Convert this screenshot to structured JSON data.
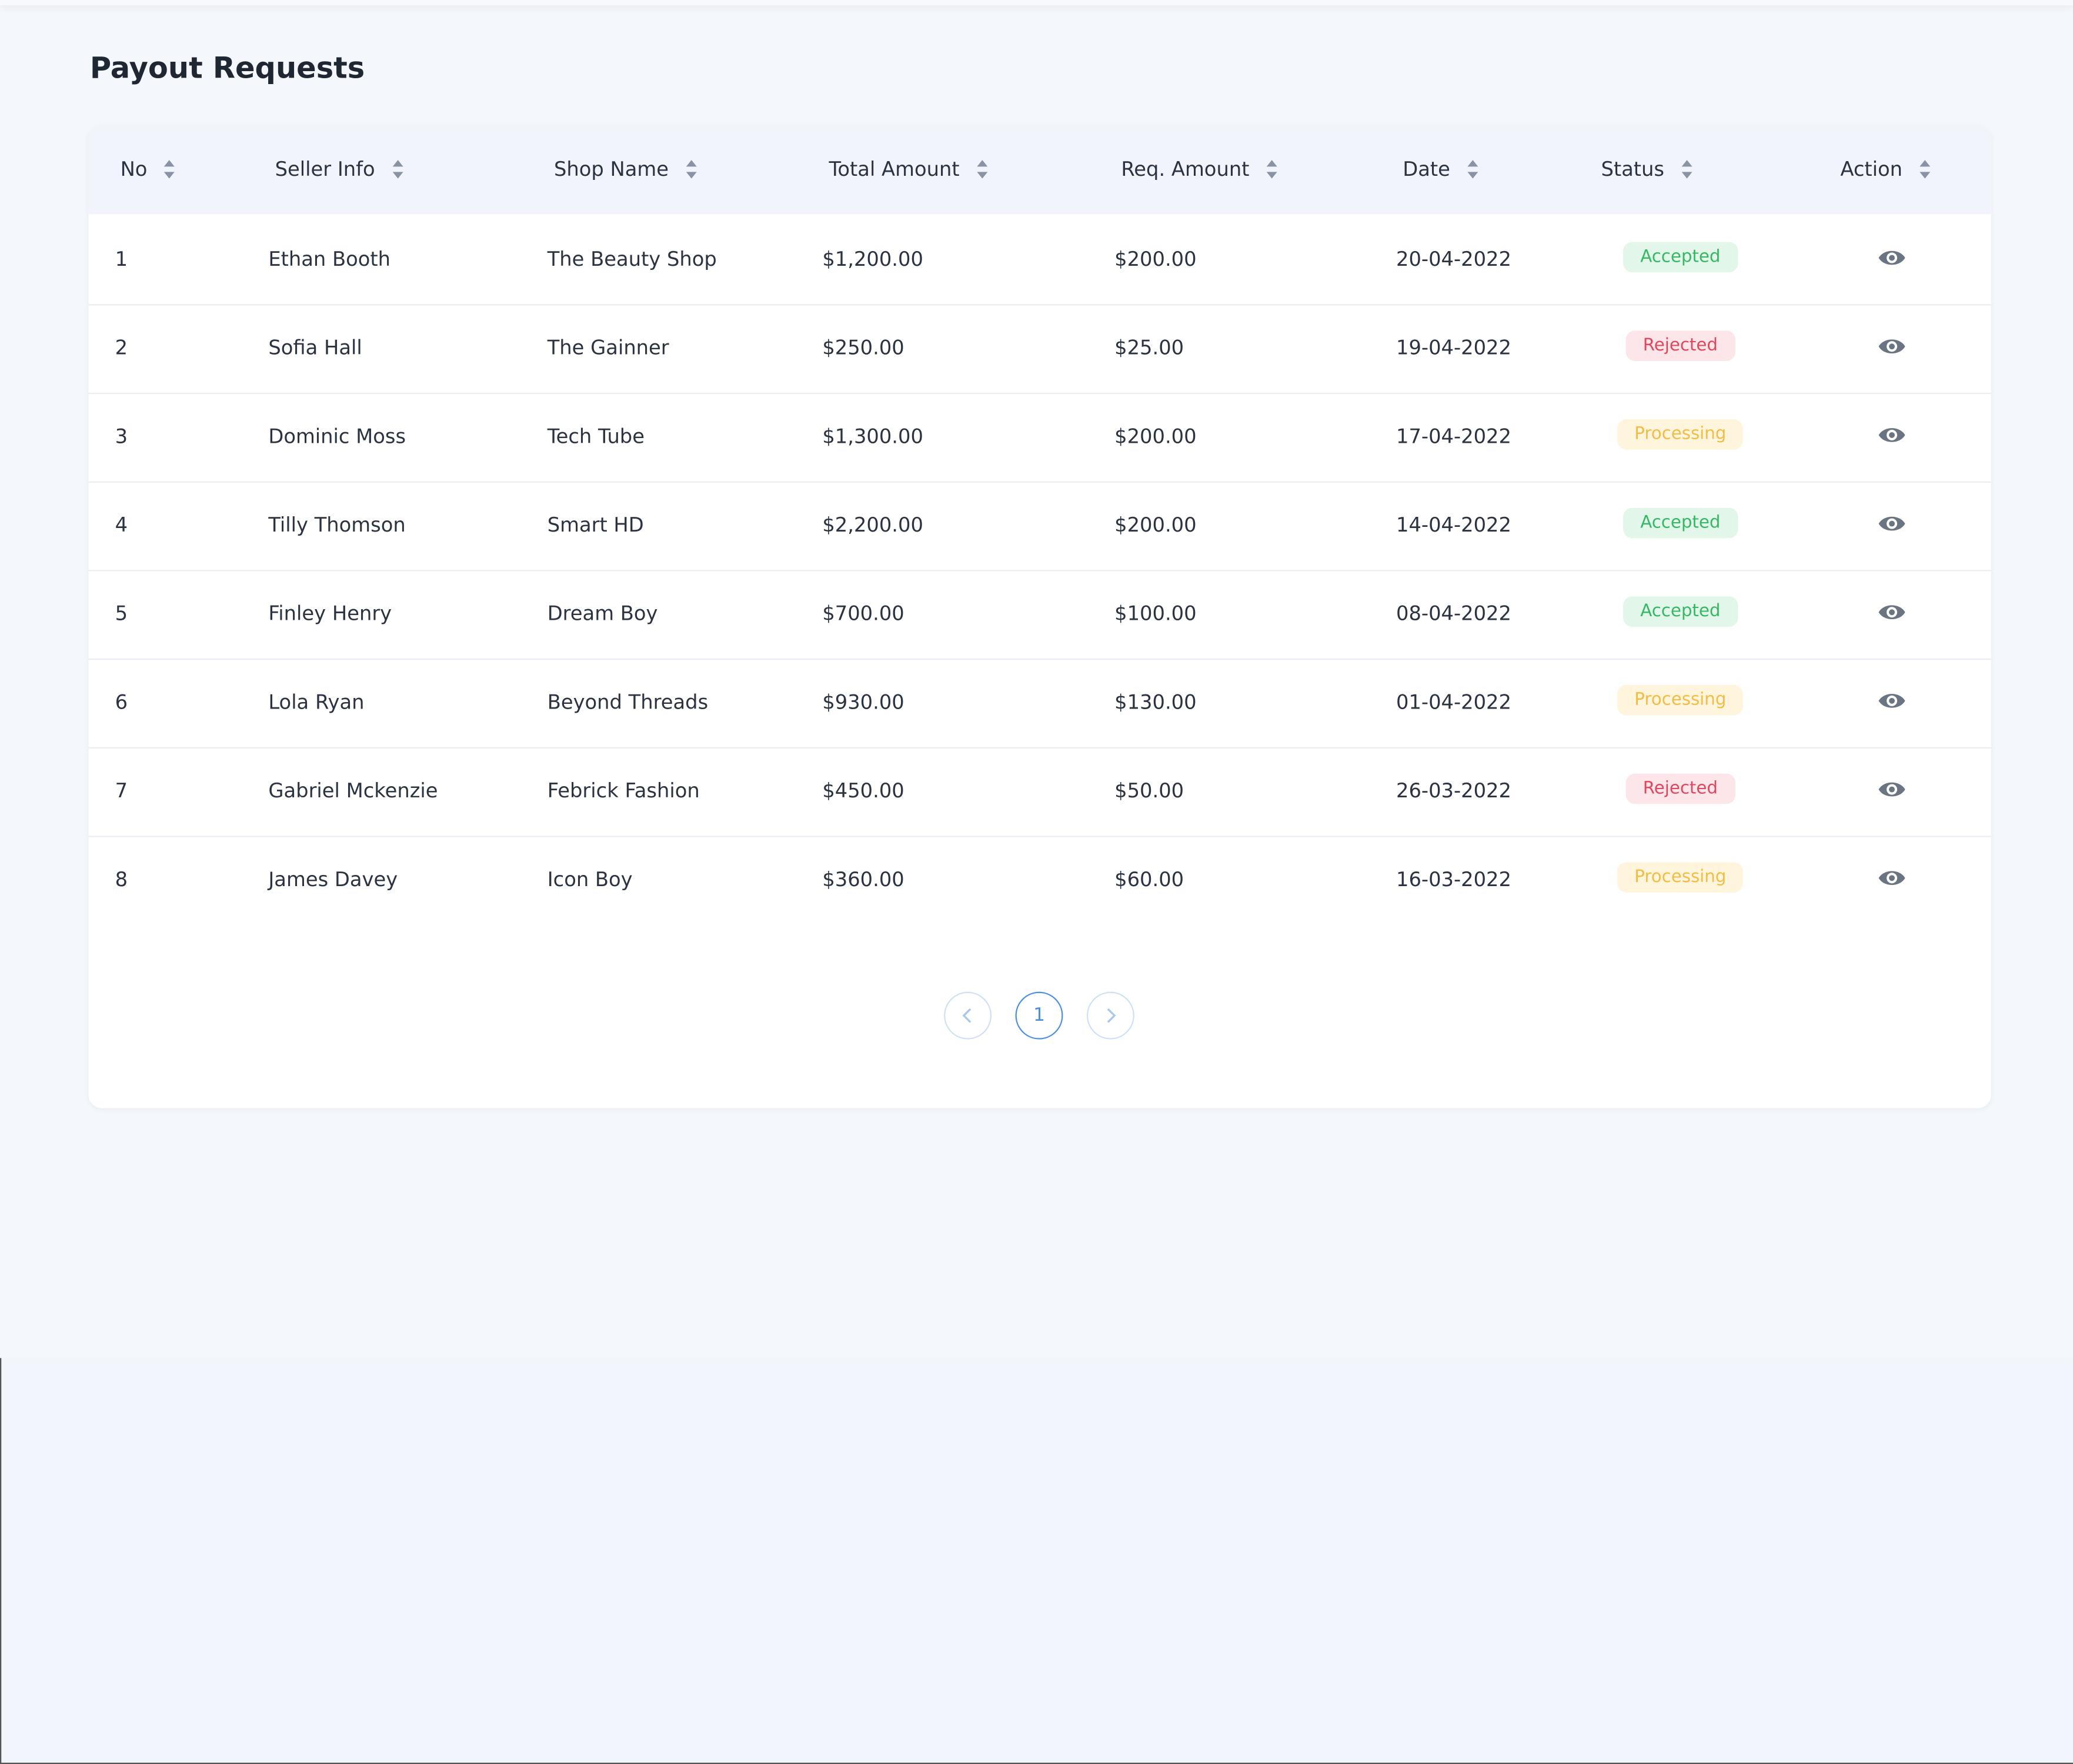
{
  "header": {
    "title": "Payout Requests"
  },
  "table": {
    "columns": [
      "No",
      "Seller Info",
      "Shop Name",
      "Total Amount",
      "Req. Amount",
      "Date",
      "Status",
      "Action"
    ],
    "rows": [
      {
        "no": "1",
        "seller": "Ethan Booth",
        "shop": "The Beauty Shop",
        "total": "$1,200.00",
        "requested": "$200.00",
        "date": "20-04-2022",
        "status": {
          "text": "Accepted",
          "color": "#35b864",
          "background": "#e2f7ea"
        }
      },
      {
        "no": "2",
        "seller": "Sofia Hall",
        "shop": "The Gainner",
        "total": "$250.00",
        "requested": "$25.00",
        "date": "19-04-2022",
        "status": {
          "text": "Rejected",
          "color": "#e0475e",
          "background": "#fde6ea"
        }
      },
      {
        "no": "3",
        "seller": "Dominic Moss",
        "shop": "Tech Tube",
        "total": "$1,300.00",
        "requested": "$200.00",
        "date": "17-04-2022",
        "status": {
          "text": "Processing",
          "color": "#f3bd45",
          "background": "#fff5dc"
        }
      },
      {
        "no": "4",
        "seller": "Tilly Thomson",
        "shop": "Smart HD",
        "total": "$2,200.00",
        "requested": "$200.00",
        "date": "14-04-2022",
        "status": {
          "text": "Accepted",
          "color": "#35b864",
          "background": "#e2f7ea"
        }
      },
      {
        "no": "5",
        "seller": "Finley Henry",
        "shop": "Dream Boy",
        "total": "$700.00",
        "requested": "$100.00",
        "date": "08-04-2022",
        "status": {
          "text": "Accepted",
          "color": "#35b864",
          "background": "#e2f7ea"
        }
      },
      {
        "no": "6",
        "seller": "Lola Ryan",
        "shop": "Beyond Threads",
        "total": "$930.00",
        "requested": "$130.00",
        "date": "01-04-2022",
        "status": {
          "text": "Processing",
          "color": "#f3bd45",
          "background": "#fff5dc"
        }
      },
      {
        "no": "7",
        "seller": "Gabriel Mckenzie",
        "shop": "Febrick Fashion",
        "total": "$450.00",
        "requested": "$50.00",
        "date": "26-03-2022",
        "status": {
          "text": "Rejected",
          "color": "#e0475e",
          "background": "#fde6ea"
        }
      },
      {
        "no": "8",
        "seller": "James Davey",
        "shop": "Icon Boy",
        "total": "$360.00",
        "requested": "$60.00",
        "date": "16-03-2022",
        "status": {
          "text": "Processing",
          "color": "#f3bd45",
          "background": "#fff5dc"
        }
      }
    ]
  },
  "pagination": {
    "current": "1"
  }
}
